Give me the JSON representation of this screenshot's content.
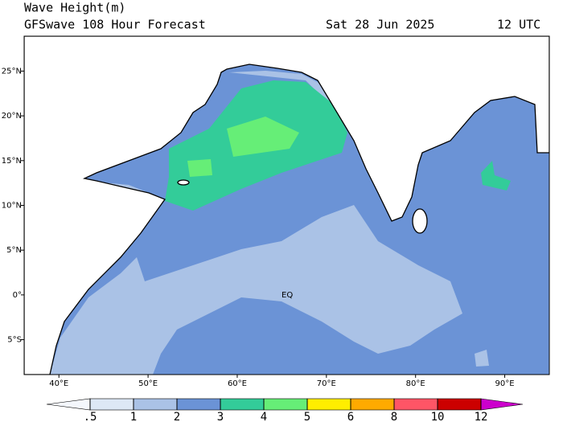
{
  "header": {
    "title": "Wave Height(m)",
    "subtitle": "GFSwave 108 Hour Forecast",
    "date": "Sat 28 Jun 2025",
    "time": "12 UTC"
  },
  "map": {
    "xlim": [
      36.1,
      95
    ],
    "ylim": [
      -8.9,
      28.9
    ],
    "xticks": [
      {
        "value": 40,
        "label": "40°E"
      },
      {
        "value": 50,
        "label": "50°E"
      },
      {
        "value": 60,
        "label": "60°E"
      },
      {
        "value": 70,
        "label": "70°E"
      },
      {
        "value": 80,
        "label": "80°E"
      },
      {
        "value": 90,
        "label": "90°E"
      }
    ],
    "yticks": [
      {
        "value": 25,
        "label": "25°N"
      },
      {
        "value": 20,
        "label": "20°N"
      },
      {
        "value": 15,
        "label": "15°N"
      },
      {
        "value": 10,
        "label": "10°N"
      },
      {
        "value": 5,
        "label": "5°N"
      },
      {
        "value": 0,
        "label": "0°"
      },
      {
        "value": -5,
        "label": "5°S"
      }
    ],
    "equator_label": "EQ"
  },
  "colorbar": {
    "levels": [
      {
        "value": 0.5,
        "label": ".5"
      },
      1,
      2,
      3,
      4,
      5,
      6,
      8,
      10,
      12
    ],
    "colors": [
      "#f4f7fc",
      "#dde8f5",
      "#aac2e6",
      "#6b93d6",
      "#33cc99",
      "#66ee77",
      "#ffee00",
      "#ffaa00",
      "#ff5566",
      "#cc0000",
      "#cc00cc"
    ]
  }
}
